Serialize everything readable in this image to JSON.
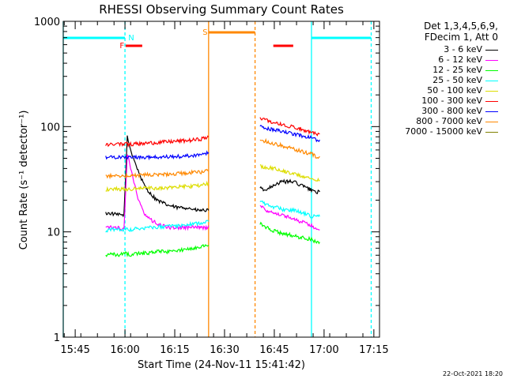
{
  "chart_data": {
    "type": "line",
    "title": "RHESSI Observing Summary Count Rates",
    "xlabel": "Start Time (24-Nov-11 15:41:42)",
    "ylabel": "Count Rate (s⁻¹ detector⁻¹)",
    "y_scale": "log",
    "ylim": [
      1,
      1000
    ],
    "y_ticks": [
      1,
      10,
      100,
      1000
    ],
    "y_tick_labels": [
      "1",
      "10",
      "100",
      "1000"
    ],
    "x_range_minutes": [
      -0.3,
      95.0
    ],
    "x_ticks": [
      3.3,
      18.3,
      33.3,
      48.3,
      63.3,
      78.3,
      93.3
    ],
    "x_tick_labels": [
      "15:45",
      "16:00",
      "16:15",
      "16:30",
      "16:45",
      "17:00",
      "17:15"
    ],
    "detector_header": [
      "Det 1,3,4,5,6,9,",
      "FDecim 1, Att 0"
    ],
    "series": [
      {
        "name": "3 - 6 keV",
        "color": "#000000",
        "points": [
          [
            12.5,
            15
          ],
          [
            14,
            15
          ],
          [
            16,
            14.5
          ],
          [
            18,
            14.5
          ],
          [
            19,
            80
          ],
          [
            20,
            60
          ],
          [
            22,
            40
          ],
          [
            24,
            28
          ],
          [
            26,
            23
          ],
          [
            28,
            20
          ],
          [
            31,
            18
          ],
          [
            34,
            17
          ],
          [
            37,
            17
          ],
          [
            40,
            16
          ],
          [
            43,
            16
          ],
          [
            43.5,
            16
          ],
          [
            59,
            26
          ],
          [
            61,
            25
          ],
          [
            63,
            28
          ],
          [
            66,
            30
          ],
          [
            69,
            30
          ],
          [
            70,
            29
          ],
          [
            74.5,
            25
          ],
          [
            76,
            24
          ],
          [
            77,
            24
          ]
        ]
      },
      {
        "name": "6 - 12 keV",
        "color": "#ff00ff",
        "points": [
          [
            12.5,
            11
          ],
          [
            14,
            11
          ],
          [
            16,
            11
          ],
          [
            18,
            10.5
          ],
          [
            19,
            55
          ],
          [
            20,
            40
          ],
          [
            22,
            22
          ],
          [
            24,
            15
          ],
          [
            26,
            13
          ],
          [
            28,
            12
          ],
          [
            31,
            11
          ],
          [
            34,
            11
          ],
          [
            37,
            11
          ],
          [
            40,
            11
          ],
          [
            43,
            11
          ],
          [
            43.5,
            11.5
          ],
          [
            59,
            18
          ],
          [
            61,
            16
          ],
          [
            64,
            15
          ],
          [
            67,
            14
          ],
          [
            70,
            13
          ],
          [
            74.5,
            11.5
          ],
          [
            76,
            10.5
          ],
          [
            77,
            10.5
          ]
        ]
      },
      {
        "name": "12 - 25 keV",
        "color": "#00ff00",
        "points": [
          [
            12.5,
            6
          ],
          [
            14,
            6.2
          ],
          [
            16,
            6
          ],
          [
            18,
            6.3
          ],
          [
            20,
            6
          ],
          [
            22,
            6.2
          ],
          [
            25,
            6.3
          ],
          [
            28,
            6.5
          ],
          [
            31,
            6.5
          ],
          [
            34,
            6.7
          ],
          [
            37,
            6.8
          ],
          [
            40,
            7.2
          ],
          [
            43,
            7.5
          ],
          [
            43.5,
            7.5
          ],
          [
            59,
            12
          ],
          [
            61,
            11
          ],
          [
            64,
            10
          ],
          [
            67,
            9.5
          ],
          [
            70,
            9
          ],
          [
            74.5,
            8.5
          ],
          [
            76,
            8
          ],
          [
            77,
            8
          ]
        ]
      },
      {
        "name": "25 - 50 keV",
        "color": "#00ffff",
        "points": [
          [
            12.5,
            10
          ],
          [
            14,
            10.5
          ],
          [
            16,
            10.5
          ],
          [
            18,
            10.5
          ],
          [
            20,
            10.5
          ],
          [
            23,
            10.8
          ],
          [
            26,
            11
          ],
          [
            29,
            11.2
          ],
          [
            32,
            11.3
          ],
          [
            35,
            11.5
          ],
          [
            38,
            11.8
          ],
          [
            41,
            12
          ],
          [
            43.5,
            12.5
          ],
          [
            59,
            20
          ],
          [
            61,
            18
          ],
          [
            64,
            17
          ],
          [
            67,
            16
          ],
          [
            70,
            16
          ],
          [
            74.5,
            14
          ],
          [
            76,
            14
          ],
          [
            77,
            14
          ]
        ]
      },
      {
        "name": "50 - 100 keV",
        "color": "#dddd00",
        "points": [
          [
            12.5,
            25
          ],
          [
            14,
            25.5
          ],
          [
            16,
            25.5
          ],
          [
            18,
            25.5
          ],
          [
            20,
            25.5
          ],
          [
            23,
            26
          ],
          [
            26,
            26
          ],
          [
            29,
            26
          ],
          [
            32,
            26.5
          ],
          [
            35,
            27
          ],
          [
            38,
            27
          ],
          [
            41,
            27.5
          ],
          [
            43.5,
            29
          ],
          [
            59,
            42
          ],
          [
            61,
            41
          ],
          [
            64,
            40
          ],
          [
            67,
            37
          ],
          [
            70,
            35
          ],
          [
            74.5,
            32
          ],
          [
            76,
            31
          ],
          [
            77,
            31
          ]
        ]
      },
      {
        "name": "100 - 300 keV",
        "color": "#ff0000",
        "points": [
          [
            12.5,
            68
          ],
          [
            14,
            68
          ],
          [
            16,
            68
          ],
          [
            18,
            68
          ],
          [
            20,
            68
          ],
          [
            23,
            69
          ],
          [
            26,
            70
          ],
          [
            29,
            71
          ],
          [
            32,
            72
          ],
          [
            35,
            73
          ],
          [
            38,
            74
          ],
          [
            41,
            76
          ],
          [
            43.5,
            80
          ],
          [
            59,
            120
          ],
          [
            61,
            115
          ],
          [
            64,
            108
          ],
          [
            67,
            102
          ],
          [
            70,
            98
          ],
          [
            74.5,
            88
          ],
          [
            76,
            85
          ],
          [
            77,
            85
          ]
        ]
      },
      {
        "name": "300 - 800 keV",
        "color": "#0000ff",
        "points": [
          [
            12.5,
            51
          ],
          [
            14,
            51
          ],
          [
            16,
            51
          ],
          [
            18,
            51
          ],
          [
            20,
            51
          ],
          [
            23,
            51
          ],
          [
            26,
            51
          ],
          [
            29,
            51.5
          ],
          [
            32,
            52
          ],
          [
            35,
            52
          ],
          [
            38,
            53
          ],
          [
            41,
            54
          ],
          [
            43.5,
            57
          ],
          [
            59,
            100
          ],
          [
            61,
            96
          ],
          [
            64,
            92
          ],
          [
            67,
            88
          ],
          [
            70,
            84
          ],
          [
            74.5,
            78
          ],
          [
            76,
            75
          ],
          [
            77,
            75
          ]
        ]
      },
      {
        "name": "800 - 7000 keV",
        "color": "#ff8800",
        "points": [
          [
            12.5,
            34
          ],
          [
            14,
            34
          ],
          [
            16,
            34
          ],
          [
            18,
            34
          ],
          [
            20,
            34
          ],
          [
            23,
            34.5
          ],
          [
            26,
            35
          ],
          [
            29,
            35
          ],
          [
            32,
            35.5
          ],
          [
            35,
            36
          ],
          [
            38,
            36.5
          ],
          [
            41,
            37
          ],
          [
            43.5,
            38
          ],
          [
            59,
            75
          ],
          [
            61,
            72
          ],
          [
            64,
            68
          ],
          [
            67,
            64
          ],
          [
            70,
            60
          ],
          [
            74.5,
            55
          ],
          [
            76,
            52
          ],
          [
            77,
            52
          ]
        ]
      },
      {
        "name": "7000 - 15000 keV",
        "color": "#808000",
        "points": []
      }
    ],
    "markers": [
      {
        "label": "N",
        "type": "night",
        "color": "#00ffff"
      },
      {
        "label": "F",
        "type": "flare",
        "color": "#ff0000"
      },
      {
        "label": "S",
        "type": "saa",
        "color": "#ff8800"
      }
    ]
  },
  "stamp": "22-Oct-2021 18:20"
}
